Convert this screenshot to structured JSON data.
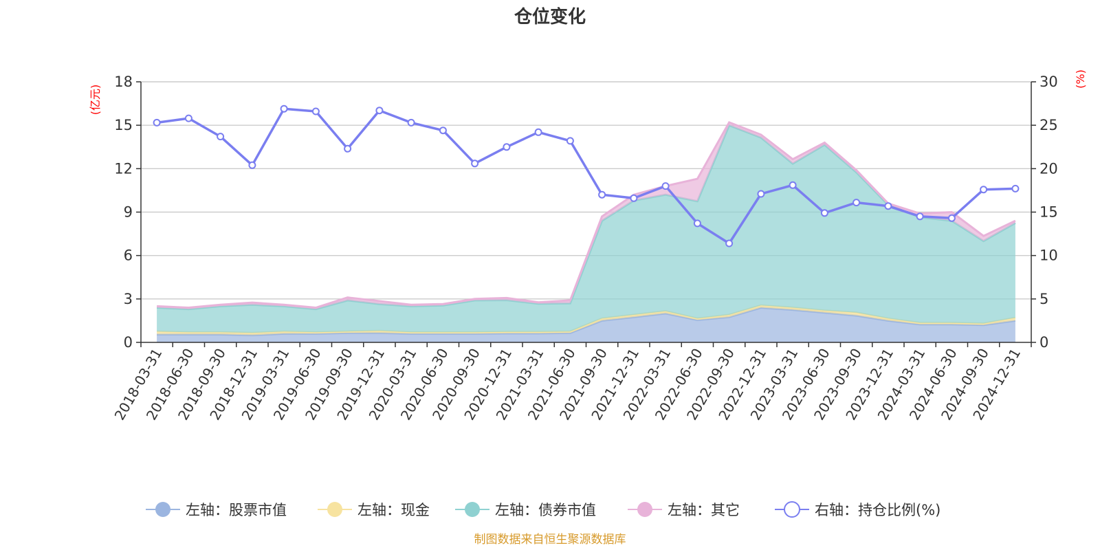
{
  "chart_data": {
    "type": "area",
    "title": "仓位变化",
    "y_left_unit": "(亿元)",
    "y_right_unit": "(%)",
    "y_left_lim": [
      0,
      18
    ],
    "y_left_ticks": [
      "0",
      "3",
      "6",
      "9",
      "12",
      "15",
      "18"
    ],
    "y_right_lim": [
      0,
      30
    ],
    "y_right_ticks": [
      "0",
      "5",
      "10",
      "15",
      "20",
      "25",
      "30"
    ],
    "stacked": true,
    "grid": true,
    "legend_position": "bottom",
    "categories": [
      "2018-03-31",
      "2018-06-30",
      "2018-09-30",
      "2018-12-31",
      "2019-03-31",
      "2019-06-30",
      "2019-09-30",
      "2019-12-31",
      "2020-03-31",
      "2020-06-30",
      "2020-09-30",
      "2020-12-31",
      "2021-03-31",
      "2021-06-30",
      "2021-09-30",
      "2021-12-31",
      "2022-03-31",
      "2022-06-30",
      "2022-09-30",
      "2022-12-31",
      "2023-03-31",
      "2023-06-30",
      "2023-09-30",
      "2023-12-31",
      "2024-03-31",
      "2024-06-30",
      "2024-09-30",
      "2024-12-31"
    ],
    "series": [
      {
        "name": "左轴：股票市值",
        "axis": "left",
        "type": "area",
        "color": "#9bb5e0",
        "values": [
          0.55,
          0.55,
          0.55,
          0.5,
          0.6,
          0.6,
          0.65,
          0.65,
          0.6,
          0.6,
          0.6,
          0.62,
          0.62,
          0.65,
          1.5,
          1.75,
          2.0,
          1.55,
          1.75,
          2.4,
          2.25,
          2.05,
          1.85,
          1.5,
          1.25,
          1.25,
          1.2,
          1.5
        ]
      },
      {
        "name": "左轴：现金",
        "axis": "left",
        "type": "area",
        "color": "#f7e3a0",
        "values": [
          0.2,
          0.15,
          0.15,
          0.15,
          0.15,
          0.1,
          0.1,
          0.15,
          0.1,
          0.1,
          0.1,
          0.1,
          0.1,
          0.1,
          0.15,
          0.15,
          0.15,
          0.1,
          0.15,
          0.15,
          0.15,
          0.15,
          0.2,
          0.15,
          0.1,
          0.1,
          0.1,
          0.2
        ]
      },
      {
        "name": "左轴：债券市值",
        "axis": "left",
        "type": "area",
        "color": "#8fd1d1",
        "values": [
          1.65,
          1.6,
          1.8,
          1.95,
          1.75,
          1.6,
          2.15,
          1.85,
          1.8,
          1.85,
          2.2,
          2.2,
          1.95,
          1.95,
          6.75,
          7.9,
          8.05,
          8.1,
          13.1,
          11.6,
          9.95,
          11.45,
          9.7,
          7.85,
          7.3,
          7.05,
          5.7,
          6.55
        ]
      },
      {
        "name": "左轴：其它",
        "axis": "left",
        "type": "area",
        "color": "#e8b3d9",
        "values": [
          0.1,
          0.1,
          0.1,
          0.15,
          0.1,
          0.1,
          0.2,
          0.2,
          0.1,
          0.1,
          0.1,
          0.15,
          0.1,
          0.2,
          0.3,
          0.4,
          0.6,
          1.55,
          0.2,
          0.2,
          0.3,
          0.15,
          0.15,
          0.1,
          0.25,
          0.6,
          0.35,
          0.15
        ]
      },
      {
        "name": "右轴：持仓比例(%)",
        "axis": "right",
        "type": "line",
        "color": "#7a7ef0",
        "values": [
          25.3,
          25.8,
          23.7,
          20.4,
          26.9,
          26.6,
          22.3,
          26.7,
          25.3,
          24.4,
          20.6,
          22.5,
          24.2,
          23.2,
          17.0,
          16.6,
          18.0,
          13.7,
          11.4,
          17.1,
          18.1,
          14.9,
          16.1,
          15.7,
          14.5,
          14.3,
          17.6,
          17.7
        ]
      }
    ]
  },
  "footer": "制图数据来自恒生聚源数据库"
}
